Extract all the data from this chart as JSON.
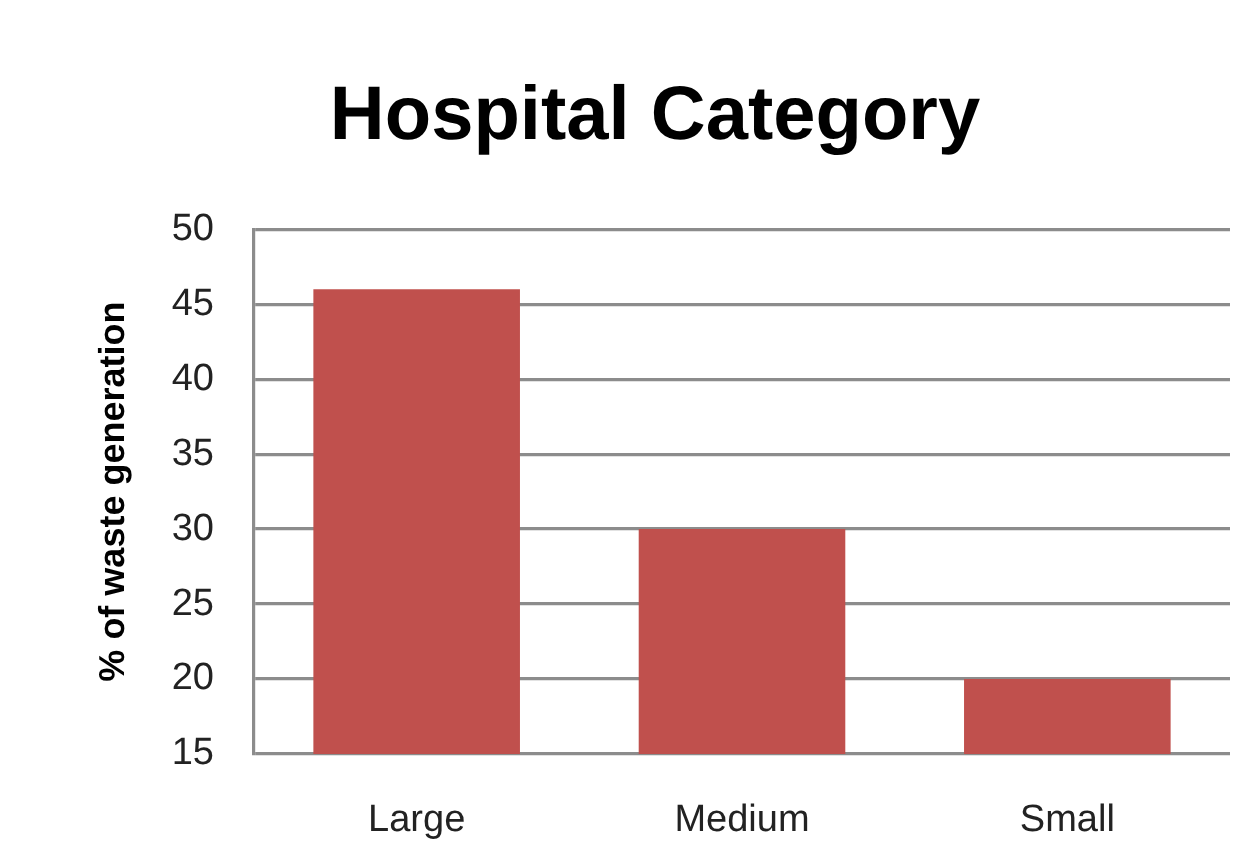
{
  "chart_data": {
    "type": "bar",
    "title": "Hospital Category",
    "ylabel": "% of waste generation",
    "categories": [
      "Large",
      "Medium",
      "Small"
    ],
    "values": [
      46,
      30,
      20
    ],
    "color": "#c0504d",
    "ylim": [
      15,
      50
    ],
    "yticks": [
      15,
      20,
      25,
      30,
      35,
      40,
      45,
      50
    ],
    "grid": "y"
  }
}
